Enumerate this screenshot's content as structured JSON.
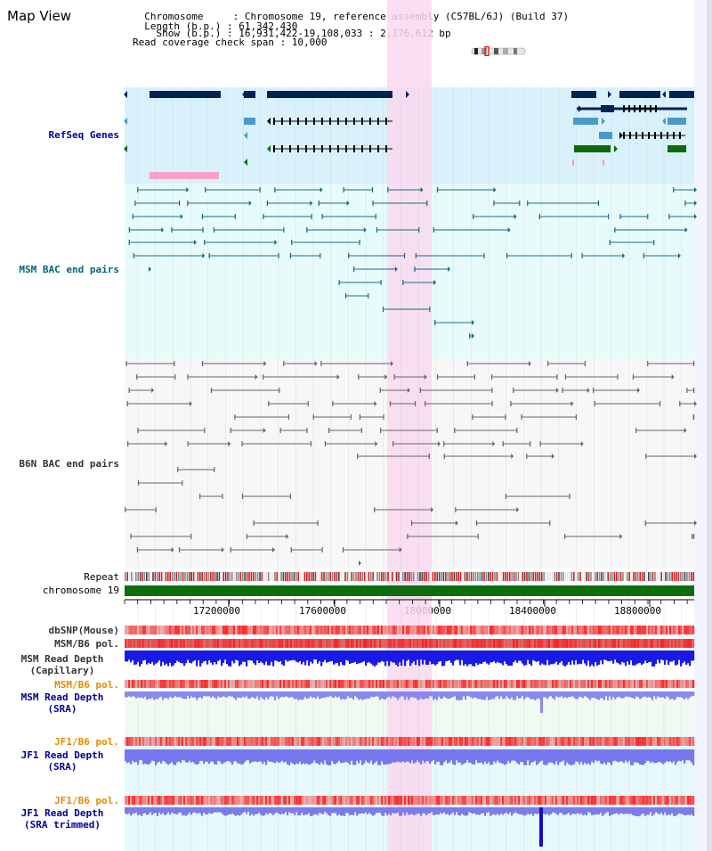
{
  "page": {
    "title": "Map View"
  },
  "region_info": {
    "chromosome_line": "  Chromosome     : Chromosome 19, reference assembly (C57BL/6J) (Build 37)",
    "length_line": "  Length (b.p.) : 61,342,430",
    "show_line": "    Show (b.p.) : 16,931,422-19,108,033 : 2,176,612 bp",
    "span_line": "Read coverage check span : 10,000"
  },
  "tracks": {
    "refseq": "RefSeq Genes",
    "msm_bac": "MSM BAC end pairs",
    "b6n_bac": "B6N BAC end pairs",
    "repeat": "Repeat",
    "chromosome": "chromosome 19",
    "dbsnp": "dbSNP(Mouse)",
    "msm_b6_pol_1": "MSM/B6 pol.",
    "msm_depth_cap_1": "MSM Read Depth",
    "msm_depth_cap_2": "(Capillary)",
    "msm_b6_pol_2": "MSM/B6 pol.",
    "msm_depth_sra_1": "MSM Read Depth",
    "msm_depth_sra_2": "(SRA)",
    "jf1_b6_pol_1": "JF1/B6 pol.",
    "jf1_depth_sra_1": "JF1 Read Depth",
    "jf1_depth_sra_2": "(SRA)",
    "jf1_b6_pol_2": "JF1/B6 pol.",
    "jf1_depth_trim_1": "JF1 Read Depth",
    "jf1_depth_trim_2": "(SRA trimmed)"
  },
  "axis": {
    "ticks": [
      "17200000",
      "17600000",
      "18000000",
      "18400000",
      "18800000"
    ]
  },
  "colors": {
    "refseq_bg": "#d9f1fa",
    "bac_bg": "#e8fbfb",
    "b6n_bg": "#f7f7f7",
    "highlight": "#f9d8ef",
    "chromosome_bar": "#0d6e0d",
    "gene_dark": "#002255",
    "gene_mid": "#4a9ac8",
    "gene_green": "#0b6b0b",
    "pink_bar": "#f7a0c8",
    "teal_line": "#1a6b80",
    "gray_line": "#666666",
    "depth_blue": "#1a1ae6",
    "depth_light": "#8888ee"
  }
}
